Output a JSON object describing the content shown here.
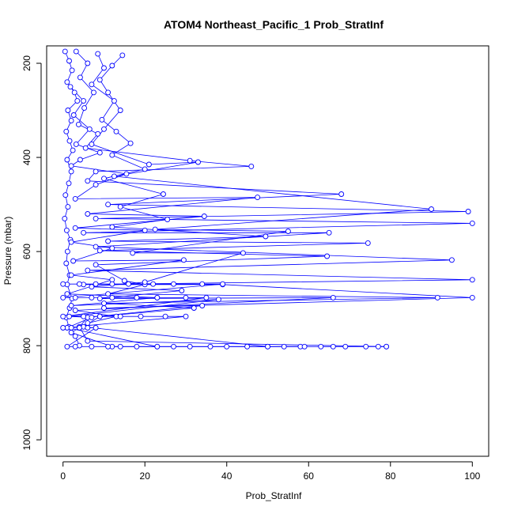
{
  "chart_data": {
    "type": "line",
    "title": "ATOM4 Northeast_Pacific_1 Prob_StratInf",
    "xlabel": "Prob_StratInf",
    "ylabel": "Pressure (mbar)",
    "xlim": [
      -4,
      104
    ],
    "ylim": [
      1035,
      163
    ],
    "y_reversed": true,
    "x_ticks": [
      0,
      20,
      40,
      60,
      80,
      100
    ],
    "y_ticks": [
      200,
      400,
      600,
      800,
      1000
    ],
    "marker": "open-circle",
    "color": "#0000ff",
    "series": [
      {
        "name": "",
        "points": [
          [
            0.5,
            175
          ],
          [
            1.5,
            195
          ],
          [
            2.2,
            215
          ],
          [
            1.0,
            240
          ],
          [
            2.8,
            262
          ],
          [
            3.5,
            280
          ],
          [
            1.2,
            300
          ],
          [
            2.0,
            322
          ],
          [
            0.8,
            345
          ],
          [
            1.6,
            365
          ],
          [
            2.4,
            385
          ],
          [
            1.0,
            405
          ],
          [
            2.0,
            430
          ],
          [
            1.4,
            455
          ],
          [
            0.6,
            480
          ],
          [
            1.2,
            505
          ],
          [
            0.4,
            530
          ],
          [
            0.9,
            555
          ],
          [
            1.8,
            575
          ],
          [
            1.1,
            600
          ],
          [
            0.8,
            625
          ],
          [
            1.6,
            650
          ],
          [
            1.0,
            670
          ],
          [
            2.2,
            700
          ],
          [
            1.6,
            720
          ],
          [
            0.8,
            740
          ],
          [
            1.4,
            760
          ],
          [
            3.0,
            780
          ],
          [
            4.0,
            800
          ]
        ]
      },
      {
        "name": "",
        "points": [
          [
            3.2,
            175
          ],
          [
            6.0,
            200
          ],
          [
            4.2,
            230
          ],
          [
            7.5,
            262
          ],
          [
            5.2,
            295
          ],
          [
            3.8,
            330
          ],
          [
            8.5,
            350
          ],
          [
            5.5,
            380
          ],
          [
            31.0,
            407
          ],
          [
            46.0,
            419
          ],
          [
            8.0,
            430
          ],
          [
            6.0,
            450
          ],
          [
            68.0,
            478
          ],
          [
            11.0,
            500
          ],
          [
            99.0,
            515
          ],
          [
            8.0,
            530
          ],
          [
            100.0,
            540
          ],
          [
            5.0,
            560
          ],
          [
            65.0,
            560
          ],
          [
            8.0,
            590
          ],
          [
            95.0,
            618
          ],
          [
            6.0,
            640
          ],
          [
            100.0,
            660
          ],
          [
            5.0,
            670
          ],
          [
            39.0,
            670
          ],
          [
            100.0,
            698
          ],
          [
            10.0,
            720
          ],
          [
            34.0,
            715
          ],
          [
            6.0,
            740
          ],
          [
            4.0,
            760
          ],
          [
            6.0,
            790
          ],
          [
            79.0,
            802
          ]
        ]
      },
      {
        "name": "",
        "points": [
          [
            8.5,
            180
          ],
          [
            10.0,
            210
          ],
          [
            7.0,
            245
          ],
          [
            12.5,
            280
          ],
          [
            9.5,
            320
          ],
          [
            13.0,
            345
          ],
          [
            16.5,
            370
          ],
          [
            12.0,
            395
          ],
          [
            20.0,
            425
          ],
          [
            10.0,
            445
          ],
          [
            24.5,
            478
          ],
          [
            14.0,
            505
          ],
          [
            25.5,
            532
          ],
          [
            12.0,
            548
          ],
          [
            49.5,
            568
          ],
          [
            11.0,
            578
          ],
          [
            74.5,
            582
          ],
          [
            9.0,
            598
          ],
          [
            64.5,
            610
          ],
          [
            8.0,
            628
          ],
          [
            15.0,
            662
          ],
          [
            20.0,
            670
          ],
          [
            11.0,
            690
          ],
          [
            91.5,
            698
          ],
          [
            10.0,
            710
          ],
          [
            32.0,
            720
          ],
          [
            9.0,
            738
          ],
          [
            5.0,
            760
          ],
          [
            50.0,
            802
          ]
        ]
      },
      {
        "name": "",
        "points": [
          [
            14.5,
            183
          ],
          [
            12.0,
            205
          ],
          [
            9.0,
            235
          ],
          [
            11.0,
            262
          ],
          [
            14.0,
            300
          ],
          [
            10.0,
            340
          ],
          [
            7.0,
            372
          ],
          [
            21.0,
            415
          ],
          [
            33.0,
            410
          ],
          [
            12.5,
            440
          ],
          [
            90.0,
            510
          ],
          [
            22.5,
            553
          ],
          [
            55.0,
            557
          ],
          [
            17.0,
            603
          ],
          [
            44.0,
            603
          ],
          [
            20.0,
            665
          ],
          [
            7.0,
            675
          ],
          [
            29.0,
            683
          ],
          [
            9.0,
            700
          ],
          [
            66.0,
            698
          ],
          [
            3.0,
            725
          ],
          [
            13.0,
            738
          ],
          [
            6.0,
            752
          ],
          [
            2.0,
            772
          ],
          [
            12.0,
            802
          ],
          [
            58.0,
            802
          ]
        ]
      },
      {
        "name": "",
        "points": [
          [
            1.8,
            250
          ],
          [
            5.0,
            280
          ],
          [
            2.6,
            310
          ],
          [
            6.5,
            340
          ],
          [
            3.2,
            372
          ],
          [
            9.0,
            390
          ],
          [
            4.2,
            405
          ],
          [
            2.0,
            418
          ],
          [
            15.5,
            435
          ],
          [
            8.0,
            458
          ],
          [
            3.0,
            488
          ],
          [
            47.5,
            485
          ],
          [
            6.0,
            520
          ],
          [
            34.5,
            525
          ],
          [
            3.0,
            550
          ],
          [
            20.0,
            555
          ],
          [
            2.0,
            580
          ],
          [
            12.0,
            593
          ],
          [
            2.5,
            620
          ],
          [
            29.5,
            618
          ],
          [
            2.0,
            650
          ],
          [
            12.0,
            660
          ],
          [
            1.0,
            690
          ],
          [
            23.0,
            698
          ],
          [
            2.0,
            715
          ],
          [
            38.0,
            702
          ],
          [
            1.5,
            738
          ],
          [
            7.0,
            740
          ],
          [
            1.0,
            762
          ],
          [
            23.0,
            802
          ]
        ]
      },
      {
        "name": "",
        "points": [
          [
            0,
            669
          ],
          [
            4,
            669
          ],
          [
            8,
            669
          ],
          [
            12,
            669
          ],
          [
            16,
            669
          ],
          [
            22,
            669
          ],
          [
            27,
            669
          ],
          [
            34,
            669
          ],
          [
            39,
            669
          ],
          [
            0,
            698
          ],
          [
            3,
            698
          ],
          [
            7,
            698
          ],
          [
            12,
            698
          ],
          [
            18,
            698
          ],
          [
            23,
            698
          ],
          [
            30,
            698
          ],
          [
            35,
            698
          ],
          [
            0,
            738
          ],
          [
            5,
            738
          ],
          [
            9,
            738
          ],
          [
            14,
            738
          ],
          [
            19,
            738
          ],
          [
            25,
            738
          ],
          [
            30,
            738
          ],
          [
            0,
            762
          ],
          [
            2,
            762
          ],
          [
            4,
            762
          ],
          [
            6,
            762
          ],
          [
            8,
            762
          ],
          [
            1,
            802
          ],
          [
            3,
            802
          ],
          [
            7,
            802
          ],
          [
            11,
            802
          ],
          [
            14,
            802
          ],
          [
            18,
            802
          ],
          [
            23,
            802
          ],
          [
            27,
            802
          ],
          [
            31,
            802
          ],
          [
            36,
            802
          ],
          [
            40,
            802
          ],
          [
            45,
            802
          ],
          [
            50,
            802
          ],
          [
            54,
            802
          ],
          [
            59,
            802
          ],
          [
            63,
            802
          ],
          [
            66,
            802
          ],
          [
            69,
            802
          ],
          [
            74,
            802
          ],
          [
            77,
            802
          ],
          [
            79,
            802
          ]
        ]
      }
    ]
  }
}
